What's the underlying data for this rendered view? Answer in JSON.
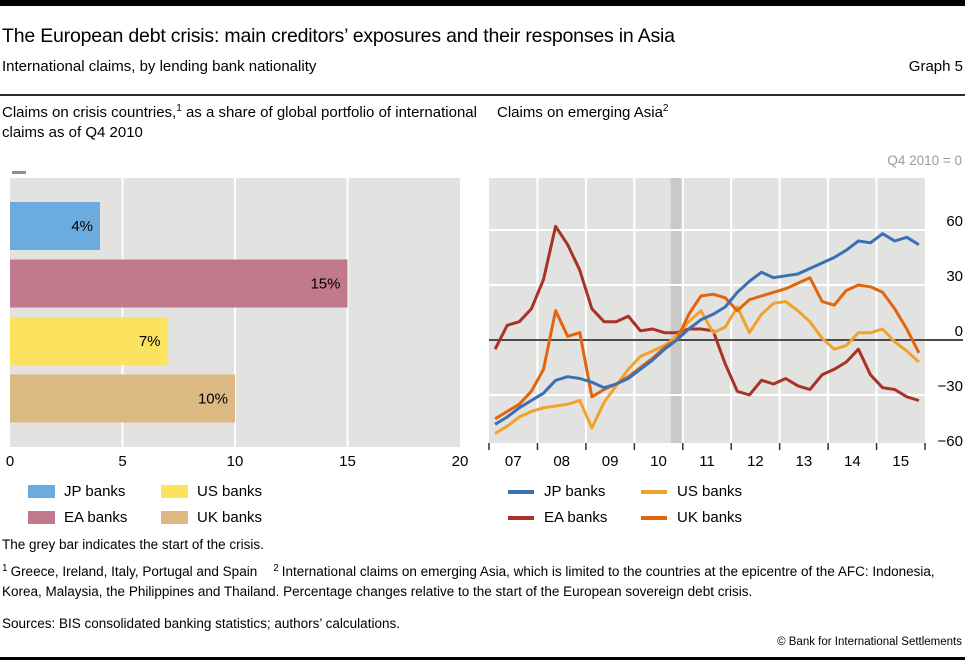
{
  "header": {
    "title": "The European debt crisis: main creditors’ exposures and their responses in Asia",
    "subtitle": "International claims, by lending bank nationality",
    "graph_label": "Graph 5"
  },
  "left_panel": {
    "title_pre": "Claims on crisis countries,",
    "title_sup": "1",
    "title_post": " as a share of global portfolio of international claims as of Q4 2010"
  },
  "right_panel": {
    "title_pre": "Claims on emerging Asia",
    "title_sup": "2",
    "unit_note": "Q4 2010 = 0"
  },
  "footnotes": {
    "crisis_note": "The grey bar indicates the start of the crisis.",
    "fn1_sup": "1",
    "fn1_text": "Greece, Ireland, Italy, Portugal and Spain",
    "fn2_sup": "2",
    "fn2_text": "International claims on emerging Asia, which is limited to the countries at the epicentre of the AFC: Indonesia, Korea, Malaysia, the Philippines and Thailand. Percentage changes relative to the start of the European sovereign debt crisis.",
    "sources": "Sources: BIS consolidated banking statistics; authors’ calculations.",
    "copyright": "© Bank for International Settlements"
  },
  "colors": {
    "plot_bg": "#e2e2e1",
    "crisis_band": "#c9c9c8",
    "grid": "#ffffff",
    "zero_line": "#4a4a4a",
    "tick": "#333333",
    "unit_text": "#9a9a9a"
  },
  "chart_data": [
    {
      "type": "bar",
      "title": "Claims on crisis countries, as a share of global portfolio of international claims as of Q4 2010",
      "categories": [
        "JP banks",
        "EA banks",
        "US banks",
        "UK banks"
      ],
      "values": [
        4,
        15,
        7,
        10
      ],
      "value_labels": [
        "4%",
        "15%",
        "7%",
        "10%"
      ],
      "colors": [
        "#6babde",
        "#c0798d",
        "#fbe35f",
        "#dcb983"
      ],
      "xlabel": "",
      "ylabel": "",
      "xlim": [
        0,
        20
      ],
      "x_ticks": [
        0,
        5,
        10,
        15,
        20
      ],
      "grid": "vertical-white",
      "legend_layout": [
        [
          0,
          2
        ],
        [
          1,
          3
        ]
      ]
    },
    {
      "type": "line",
      "title": "Claims on emerging Asia",
      "unit": "Q4 2010 = 0",
      "x_start": 2007.0,
      "x_step": 0.25,
      "x_tick_labels": [
        "07",
        "08",
        "09",
        "10",
        "11",
        "12",
        "13",
        "14",
        "15"
      ],
      "y_ticks": [
        60,
        30,
        0,
        -30,
        -60
      ],
      "ylim": [
        -56,
        88
      ],
      "grid": "on",
      "legend_position": "bottom",
      "crisis_band": {
        "label": "Q4 2010",
        "x_from": 2010.75,
        "x_to": 2011.0
      },
      "series": [
        {
          "name": "JP banks",
          "color": "#3b6fb6",
          "values": [
            -46,
            -42,
            -37,
            -33,
            -29,
            -22,
            -20,
            -21,
            -23,
            -26,
            -24,
            -21,
            -16,
            -11,
            -5,
            0,
            6,
            11,
            14,
            18,
            26,
            32,
            37,
            34,
            35,
            36,
            39,
            42,
            45,
            49,
            54,
            53,
            58,
            54,
            56,
            52
          ]
        },
        {
          "name": "EA banks",
          "color": "#a93226",
          "values": [
            -5,
            8,
            10,
            17,
            33,
            62,
            52,
            38,
            17,
            10,
            10,
            13,
            5,
            6,
            4,
            4,
            6,
            6,
            5,
            -13,
            -28,
            -30,
            -22,
            -24,
            -21,
            -25,
            -27,
            -19,
            -16,
            -12,
            -5,
            -19,
            -26,
            -27,
            -31,
            -33
          ]
        },
        {
          "name": "US banks",
          "color": "#f0a32b",
          "values": [
            -51,
            -47,
            -42,
            -39,
            -37,
            -36,
            -35,
            -33,
            -48,
            -34,
            -25,
            -16,
            -9,
            -6,
            -3,
            2,
            10,
            16,
            4,
            7,
            18,
            4,
            14,
            20,
            21,
            16,
            10,
            1,
            -5,
            -3,
            4,
            4,
            6,
            -1,
            -6,
            -12
          ]
        },
        {
          "name": "UK banks",
          "color": "#e2650e",
          "values": [
            -43,
            -39,
            -35,
            -28,
            -16,
            16,
            2,
            4,
            -31,
            -27,
            -24,
            -20,
            -15,
            -10,
            -4,
            0,
            14,
            24,
            25,
            23,
            16,
            22,
            24,
            26,
            28,
            31,
            34,
            21,
            19,
            27,
            30,
            29,
            26,
            17,
            6,
            -7
          ]
        }
      ],
      "draw_order": [
        1,
        2,
        3,
        0
      ],
      "legend_layout": [
        [
          0,
          2
        ],
        [
          1,
          3
        ]
      ]
    }
  ]
}
